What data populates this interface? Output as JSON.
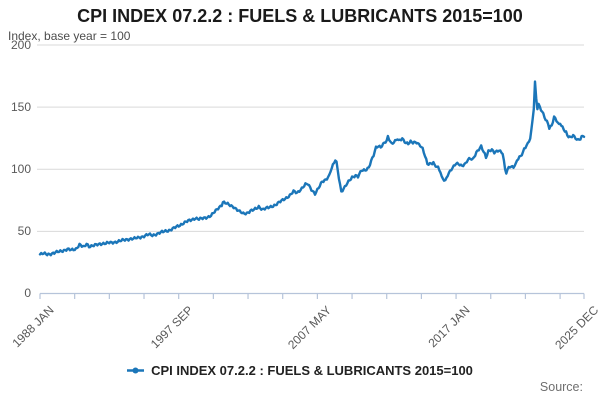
{
  "header": {
    "title": "CPI INDEX 07.2.2 : FUELS & LUBRICANTS 2015=100",
    "subtitle": "Index, base year = 100"
  },
  "legend": {
    "label": "CPI INDEX 07.2.2 : FUELS & LUBRICANTS 2015=100",
    "marker": "line-with-dot"
  },
  "footer": {
    "source_label": "Source:"
  },
  "colors": {
    "line": "#1b76b9",
    "grid": "#d9d9d9",
    "axis": "#b6c4da",
    "tick_text": "#595959"
  },
  "chart_data": {
    "type": "line",
    "title": "CPI INDEX 07.2.2 : FUELS & LUBRICANTS 2015=100",
    "xlabel": "",
    "ylabel": "Index, base year = 100",
    "ylim": [
      0,
      200
    ],
    "y_ticks": [
      0,
      50,
      100,
      150,
      200
    ],
    "grid": "horizontal",
    "legend_position": "bottom-center",
    "x_start": "1988 JAN",
    "x_end": "2025 DEC",
    "x_total_months": 455,
    "x_tick_interval_months": 29,
    "x_labels": [
      {
        "month": 0,
        "label": "1988 JAN"
      },
      {
        "month": 116,
        "label": "1997 SEP"
      },
      {
        "month": 232,
        "label": "2007 MAY"
      },
      {
        "month": 348,
        "label": "2017 JAN"
      },
      {
        "month": 455,
        "label": "2025 DEC"
      }
    ],
    "series": [
      {
        "name": "CPI INDEX 07.2.2 : FUELS & LUBRICANTS 2015=100",
        "anchors_year_value": [
          [
            1988.0,
            31.5
          ],
          [
            1988.25,
            32.0
          ],
          [
            1988.5,
            31.6
          ],
          [
            1988.75,
            32.0
          ],
          [
            1989.0,
            32.5
          ],
          [
            1989.33,
            33.8
          ],
          [
            1989.67,
            34.8
          ],
          [
            1989.92,
            35.5
          ],
          [
            1990.17,
            34.9
          ],
          [
            1990.5,
            36.0
          ],
          [
            1990.75,
            39.4
          ],
          [
            1990.92,
            38.0
          ],
          [
            1991.08,
            37.2
          ],
          [
            1991.25,
            40.2
          ],
          [
            1991.42,
            38.0
          ],
          [
            1991.75,
            38.6
          ],
          [
            1992.0,
            39.2
          ],
          [
            1992.33,
            40.3
          ],
          [
            1992.67,
            40.6
          ],
          [
            1993.0,
            40.8
          ],
          [
            1993.33,
            41.8
          ],
          [
            1993.67,
            42.5
          ],
          [
            1994.0,
            43.3
          ],
          [
            1994.25,
            44.0
          ],
          [
            1994.58,
            44.2
          ],
          [
            1995.0,
            45.3
          ],
          [
            1995.33,
            46.6
          ],
          [
            1995.58,
            47.4
          ],
          [
            1995.83,
            46.8
          ],
          [
            1996.08,
            47.8
          ],
          [
            1996.42,
            49.0
          ],
          [
            1996.75,
            50.3
          ],
          [
            1997.08,
            51.2
          ],
          [
            1997.42,
            53.0
          ],
          [
            1997.75,
            55.0
          ],
          [
            1998.0,
            56.8
          ],
          [
            1998.25,
            58.0
          ],
          [
            1998.58,
            59.3
          ],
          [
            1998.83,
            60.8
          ],
          [
            1999.08,
            59.8
          ],
          [
            1999.33,
            60.3
          ],
          [
            1999.67,
            61.5
          ],
          [
            1999.92,
            62.8
          ],
          [
            2000.17,
            65.5
          ],
          [
            2000.42,
            68.5
          ],
          [
            2000.67,
            71.5
          ],
          [
            2000.79,
            73.8
          ],
          [
            2000.96,
            72.3
          ],
          [
            2001.21,
            70.8
          ],
          [
            2001.46,
            69.8
          ],
          [
            2001.63,
            68.2
          ],
          [
            2001.88,
            65.8
          ],
          [
            2002.13,
            64.2
          ],
          [
            2002.38,
            64.8
          ],
          [
            2002.63,
            66.5
          ],
          [
            2002.88,
            67.3
          ],
          [
            2003.13,
            69.0
          ],
          [
            2003.29,
            70.0
          ],
          [
            2003.54,
            67.8
          ],
          [
            2003.79,
            68.5
          ],
          [
            2004.04,
            69.3
          ],
          [
            2004.38,
            71.5
          ],
          [
            2004.71,
            73.8
          ],
          [
            2005.04,
            75.8
          ],
          [
            2005.38,
            79.0
          ],
          [
            2005.63,
            82.0
          ],
          [
            2005.88,
            81.0
          ],
          [
            2006.13,
            83.8
          ],
          [
            2006.46,
            87.6
          ],
          [
            2006.63,
            88.0
          ],
          [
            2006.88,
            83.8
          ],
          [
            2007.13,
            80.5
          ],
          [
            2007.38,
            84.8
          ],
          [
            2007.63,
            89.8
          ],
          [
            2007.88,
            91.8
          ],
          [
            2008.13,
            95.0
          ],
          [
            2008.29,
            98.5
          ],
          [
            2008.46,
            105.0
          ],
          [
            2008.54,
            109.3
          ],
          [
            2008.67,
            105.5
          ],
          [
            2008.83,
            93.5
          ],
          [
            2009.04,
            82.0
          ],
          [
            2009.29,
            85.5
          ],
          [
            2009.54,
            90.0
          ],
          [
            2009.79,
            93.8
          ],
          [
            2009.96,
            95.0
          ],
          [
            2010.13,
            93.8
          ],
          [
            2010.38,
            99.0
          ],
          [
            2010.63,
            99.5
          ],
          [
            2010.88,
            101.5
          ],
          [
            2011.08,
            106.5
          ],
          [
            2011.25,
            111.0
          ],
          [
            2011.42,
            117.5
          ],
          [
            2011.58,
            119.0
          ],
          [
            2011.75,
            118.0
          ],
          [
            2011.96,
            121.0
          ],
          [
            2012.13,
            122.5
          ],
          [
            2012.29,
            126.0
          ],
          [
            2012.5,
            120.8
          ],
          [
            2012.71,
            122.8
          ],
          [
            2012.88,
            124.3
          ],
          [
            2013.04,
            122.5
          ],
          [
            2013.25,
            124.5
          ],
          [
            2013.5,
            121.5
          ],
          [
            2013.67,
            120.8
          ],
          [
            2013.83,
            122.0
          ],
          [
            2014.04,
            121.0
          ],
          [
            2014.25,
            121.8
          ],
          [
            2014.46,
            119.5
          ],
          [
            2014.63,
            116.5
          ],
          [
            2014.83,
            110.5
          ],
          [
            2015.04,
            104.0
          ],
          [
            2015.21,
            104.8
          ],
          [
            2015.38,
            105.8
          ],
          [
            2015.54,
            103.5
          ],
          [
            2015.71,
            101.0
          ],
          [
            2015.88,
            97.5
          ],
          [
            2016.04,
            93.5
          ],
          [
            2016.21,
            91.0
          ],
          [
            2016.42,
            95.5
          ],
          [
            2016.63,
            99.5
          ],
          [
            2016.83,
            102.0
          ],
          [
            2017.04,
            105.0
          ],
          [
            2017.21,
            104.2
          ],
          [
            2017.42,
            102.5
          ],
          [
            2017.63,
            104.2
          ],
          [
            2017.83,
            107.8
          ],
          [
            2017.96,
            109.0
          ],
          [
            2018.13,
            108.2
          ],
          [
            2018.38,
            113.2
          ],
          [
            2018.63,
            116.8
          ],
          [
            2018.75,
            118.5
          ],
          [
            2018.96,
            112.5
          ],
          [
            2019.08,
            109.8
          ],
          [
            2019.29,
            114.5
          ],
          [
            2019.5,
            115.2
          ],
          [
            2019.67,
            113.5
          ],
          [
            2019.88,
            115.2
          ],
          [
            2020.04,
            115.5
          ],
          [
            2020.21,
            112.5
          ],
          [
            2020.38,
            99.5
          ],
          [
            2020.46,
            97.0
          ],
          [
            2020.63,
            101.5
          ],
          [
            2020.79,
            102.5
          ],
          [
            2020.96,
            102.0
          ],
          [
            2021.13,
            104.0
          ],
          [
            2021.29,
            107.0
          ],
          [
            2021.46,
            110.5
          ],
          [
            2021.63,
            113.8
          ],
          [
            2021.79,
            116.8
          ],
          [
            2021.96,
            120.5
          ],
          [
            2022.13,
            124.5
          ],
          [
            2022.29,
            131.0
          ],
          [
            2022.42,
            149.0
          ],
          [
            2022.5,
            170.0
          ],
          [
            2022.58,
            157.5
          ],
          [
            2022.67,
            149.5
          ],
          [
            2022.79,
            152.5
          ],
          [
            2022.92,
            148.0
          ],
          [
            2023.08,
            144.0
          ],
          [
            2023.25,
            139.5
          ],
          [
            2023.42,
            136.8
          ],
          [
            2023.54,
            133.5
          ],
          [
            2023.67,
            135.5
          ],
          [
            2023.83,
            142.0
          ],
          [
            2023.96,
            139.0
          ],
          [
            2024.13,
            135.5
          ],
          [
            2024.29,
            137.0
          ],
          [
            2024.46,
            132.5
          ],
          [
            2024.63,
            130.0
          ],
          [
            2024.79,
            127.0
          ],
          [
            2024.96,
            125.0
          ],
          [
            2025.13,
            127.5
          ],
          [
            2025.29,
            126.0
          ],
          [
            2025.46,
            123.8
          ],
          [
            2025.63,
            124.5
          ],
          [
            2025.79,
            125.8
          ],
          [
            2025.92,
            126.5
          ]
        ]
      }
    ]
  }
}
